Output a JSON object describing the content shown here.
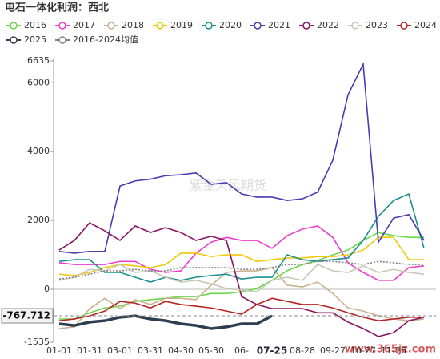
{
  "chart_data": {
    "type": "line",
    "title": "电石一体化利润：西北",
    "categories": [
      "01-01",
      null,
      "01-31",
      null,
      "03-01",
      null,
      "03-31",
      null,
      "04-30",
      null,
      "05-30",
      null,
      "06-",
      null,
      "07-25",
      null,
      "08-28",
      null,
      "09-27",
      null,
      "10-27",
      null,
      "11-26",
      null,
      null
    ],
    "ylim": [
      -1535,
      6635
    ],
    "yticks": [
      -1535,
      0,
      2000,
      4000,
      6000,
      6635
    ],
    "crosshair_index": 14,
    "crosshair_value": -767.712,
    "watermarks": [
      "紫金天风期货",
      "www.365jz.com"
    ],
    "series": [
      {
        "name": "2016",
        "color": "#6ad84a",
        "values": [
          -860,
          -860,
          -680,
          -540,
          -490,
          -350,
          -300,
          -260,
          -210,
          -210,
          -120,
          -120,
          -70,
          20,
          260,
          540,
          720,
          840,
          1000,
          1140,
          1420,
          1650,
          1560,
          1510,
          1510
        ]
      },
      {
        "name": "2017",
        "color": "#ee3ccc",
        "values": [
          770,
          720,
          720,
          720,
          810,
          810,
          580,
          490,
          535,
          1050,
          1370,
          1510,
          1420,
          1420,
          1190,
          1560,
          1750,
          1840,
          1510,
          770,
          490,
          260,
          260,
          630,
          680
        ]
      },
      {
        "name": "2018",
        "color": "#c9b18f",
        "values": [
          -1140,
          -1090,
          -560,
          -260,
          -560,
          -300,
          -440,
          -260,
          -260,
          -300,
          120,
          490,
          535,
          535,
          630,
          120,
          70,
          210,
          -120,
          -540,
          -630,
          -770,
          -860,
          -910,
          -860
        ]
      },
      {
        "name": "2019",
        "color": "#f2c80f",
        "values": [
          440,
          400,
          490,
          630,
          720,
          680,
          630,
          720,
          1050,
          1050,
          950,
          1000,
          1000,
          810,
          860,
          910,
          910,
          950,
          950,
          1000,
          1140,
          1510,
          1510,
          860,
          860
        ]
      },
      {
        "name": "2020",
        "color": "#1a9090",
        "values": [
          810,
          860,
          860,
          490,
          490,
          350,
          210,
          350,
          260,
          350,
          400,
          440,
          300,
          350,
          350,
          1000,
          860,
          810,
          860,
          910,
          1420,
          2120,
          2580,
          2770,
          1190
        ]
      },
      {
        "name": "2021",
        "color": "#4b3ab0",
        "values": [
          1100,
          1050,
          1100,
          1100,
          3000,
          3150,
          3200,
          3300,
          3330,
          3380,
          3050,
          3100,
          2770,
          2680,
          2680,
          2580,
          2630,
          2820,
          3750,
          5650,
          6540,
          1370,
          2070,
          2170,
          1420
        ]
      },
      {
        "name": "2022",
        "color": "#8a1462",
        "values": [
          1140,
          1420,
          1930,
          1700,
          1420,
          1840,
          1650,
          1790,
          1650,
          1420,
          1540,
          1420,
          -210,
          -440,
          -560,
          -560,
          -560,
          -680,
          -680,
          -950,
          -1140,
          -1370,
          -1260,
          -910,
          -810
        ]
      },
      {
        "name": "2023",
        "color": "#c8c8b8",
        "values": [
          260,
          350,
          580,
          535,
          720,
          490,
          535,
          350,
          210,
          260,
          160,
          20,
          -20,
          -70,
          260,
          350,
          260,
          720,
          535,
          490,
          680,
          490,
          580,
          490,
          440
        ]
      },
      {
        "name": "2024",
        "color": "#b52424",
        "values": [
          -910,
          -860,
          -770,
          -630,
          -350,
          -400,
          -540,
          -350,
          -440,
          -490,
          -540,
          -630,
          -720,
          -440,
          -260,
          -350,
          -440,
          -440,
          -540,
          -680,
          -810,
          -910,
          -860,
          -810,
          -810
        ]
      },
      {
        "name": "2025",
        "color": "#2c3e50",
        "values": [
          -1000,
          -1050,
          -950,
          -910,
          -810,
          -770,
          -860,
          -910,
          -1000,
          -1050,
          -1140,
          -1090,
          -1000,
          -1000,
          -770,
          null,
          null,
          null,
          null,
          null,
          null,
          null,
          null,
          null,
          null
        ]
      },
      {
        "name": "2016-2024均值",
        "color": "#808080",
        "values": [
          300,
          350,
          440,
          535,
          535,
          580,
          535,
          535,
          630,
          630,
          630,
          630,
          580,
          580,
          630,
          720,
          720,
          810,
          810,
          770,
          720,
          810,
          770,
          720,
          720
        ]
      }
    ]
  }
}
